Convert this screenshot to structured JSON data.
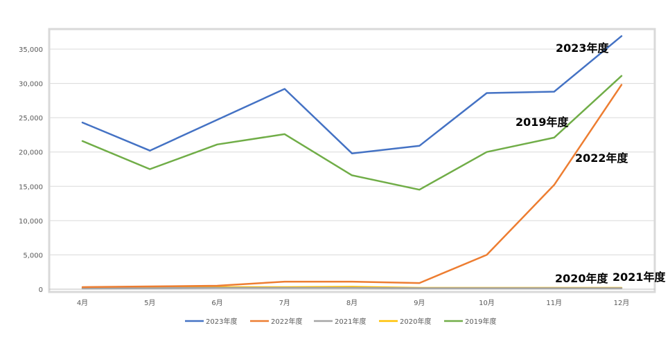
{
  "chart_data": {
    "type": "line",
    "categories": [
      "4月",
      "5月",
      "6月",
      "7月",
      "8月",
      "9月",
      "10月",
      "11月",
      "12月"
    ],
    "ylim": [
      0,
      37500
    ],
    "yticks": [
      0,
      5000,
      10000,
      15000,
      20000,
      25000,
      30000,
      35000
    ],
    "ytick_labels": [
      "0",
      "5,000",
      "10,000",
      "15,000",
      "20,000",
      "25,000",
      "30,000",
      "35,000"
    ],
    "grid": true,
    "legend_position": "bottom",
    "series": [
      {
        "name": "2023年度",
        "color": "#4472C4",
        "values": [
          24300,
          20200,
          24700,
          29200,
          19800,
          20900,
          28600,
          28800,
          36900
        ]
      },
      {
        "name": "2022年度",
        "color": "#ED7D31",
        "values": [
          300,
          400,
          500,
          1100,
          1100,
          900,
          5000,
          15200,
          29800
        ]
      },
      {
        "name": "2021年度",
        "color": "#A5A5A5",
        "values": [
          100,
          150,
          200,
          200,
          200,
          150,
          150,
          150,
          150
        ]
      },
      {
        "name": "2020年度",
        "color": "#FFC000",
        "values": [
          150,
          200,
          300,
          300,
          350,
          200,
          200,
          200,
          200
        ]
      },
      {
        "name": "2019年度",
        "color": "#70AD47",
        "values": [
          21600,
          17500,
          21100,
          22600,
          16600,
          14500,
          20000,
          22100,
          31100
        ]
      }
    ],
    "annotations": [
      "2023年度",
      "2019年度",
      "2022年度",
      "2020年度",
      "2021年度"
    ]
  }
}
